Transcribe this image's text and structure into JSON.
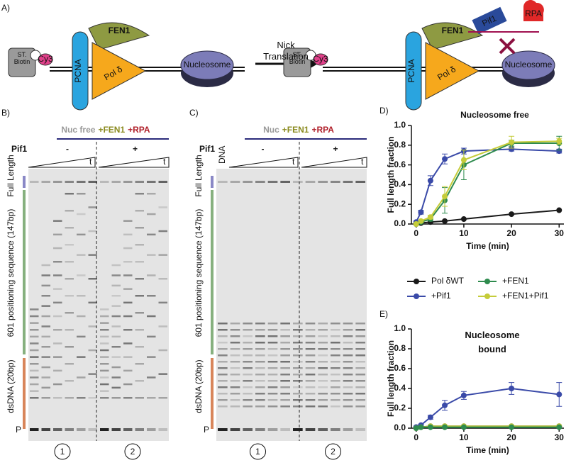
{
  "scheme": {
    "label": "A)",
    "left": {
      "biotin": "ST. Biotin",
      "cy3": "Cy3",
      "pcna": "PCNA",
      "fen1": "FEN1",
      "pol": "Pol δ",
      "nucleosome": "Nucleosome"
    },
    "arrow": "Nick Translation",
    "right": {
      "biotin": "ST. Biotin",
      "cy3": "Cy3",
      "pcna": "PCNA",
      "fen1": "FEN1",
      "pol": "Pol δ",
      "nucleosome": "Nucleosome",
      "pif1": "Pif1",
      "rpa": "RPA"
    }
  },
  "gels": [
    {
      "label": "B)",
      "title": [
        "Nuc free",
        "+FEN1",
        "+RPA"
      ],
      "pif1": "Pif1",
      "minus": "-",
      "plus": "+",
      "t": [
        "t",
        "t"
      ],
      "full_length": "Full Length",
      "region1": "601 positioning sequence (147bp)",
      "region2": "dsDNA (20bp)",
      "p": "P",
      "lanes": [
        "1",
        "2"
      ]
    },
    {
      "label": "C)",
      "title": [
        "Nuc",
        "+FEN1",
        "+RPA"
      ],
      "pif1": "Pif1",
      "dna": "DNA",
      "minus": "-",
      "plus": "+",
      "t": [
        "t",
        "t"
      ],
      "full_length": "Full Length",
      "region1": "601 positioning sequence (147bp)",
      "region2": "dsDNA (20bp)",
      "p": "P",
      "lanes": [
        "1",
        "2"
      ]
    }
  ],
  "chart_data": [
    {
      "type": "line",
      "panel": "D)",
      "title": "Nucleosome free",
      "x_label": "Time (min)",
      "y_label": "Full length fraction",
      "x": [
        0,
        1,
        3,
        6,
        10,
        20,
        30
      ],
      "xlim": [
        -1,
        31
      ],
      "xticks": [
        0,
        10,
        20,
        30
      ],
      "ylim": [
        0,
        1
      ],
      "yticks": [
        {
          "value": 0,
          "label": "0.0"
        },
        0.2,
        0.4,
        0.6,
        0.8,
        {
          "value": 1,
          "label": "1.0"
        }
      ],
      "series": [
        {
          "name": "Pol δWT",
          "color": "#1a1a1a",
          "values": [
            0,
            0.01,
            0.02,
            0.03,
            0.05,
            0.1,
            0.14
          ],
          "errors": [
            0,
            0,
            0,
            0,
            0,
            0,
            0
          ]
        },
        {
          "name": "+Pif1",
          "color": "#3a4aa8",
          "values": [
            0.02,
            0.12,
            0.44,
            0.66,
            0.74,
            0.76,
            0.74
          ],
          "errors": [
            0.01,
            0.02,
            0.05,
            0.05,
            0.03,
            0.02,
            0.02
          ]
        },
        {
          "name": "+FEN1",
          "color": "#2e8b4e",
          "values": [
            0,
            0.02,
            0.05,
            0.24,
            0.6,
            0.82,
            0.82
          ],
          "errors": [
            0,
            0.01,
            0.02,
            0.13,
            0.15,
            0.03,
            0.07
          ]
        },
        {
          "name": "+FEN1+Pif1",
          "color": "#c5cc3a",
          "values": [
            0,
            0.03,
            0.07,
            0.28,
            0.65,
            0.83,
            0.84
          ],
          "errors": [
            0,
            0.01,
            0.02,
            0.1,
            0.1,
            0.06,
            0.03
          ]
        }
      ]
    },
    {
      "type": "line",
      "panel": "E)",
      "title": "Nucleosome bound",
      "x_label": "Time (min)",
      "y_label": "Full length fraction",
      "x": [
        0,
        1,
        3,
        6,
        10,
        20,
        30
      ],
      "xlim": [
        -1,
        31
      ],
      "xticks": [
        0,
        10,
        20,
        30
      ],
      "ylim": [
        0,
        1
      ],
      "yticks": [
        {
          "value": 0,
          "label": "0.0"
        },
        0.2,
        0.4,
        0.6,
        0.8,
        {
          "value": 1,
          "label": "1.0"
        }
      ],
      "series": [
        {
          "color": "#1a1a1a",
          "values": [
            0.01,
            0.01,
            0.02,
            0.02,
            0.02,
            0.02,
            0.02
          ],
          "errors": [
            0,
            0,
            0,
            0,
            0,
            0,
            0
          ]
        },
        {
          "color": "#3a4aa8",
          "values": [
            0.01,
            0.03,
            0.11,
            0.23,
            0.33,
            0.4,
            0.34
          ],
          "errors": [
            0.01,
            0.01,
            0.02,
            0.05,
            0.04,
            0.06,
            0.12
          ]
        },
        {
          "color": "#c5cc3a",
          "values": [
            0,
            0.01,
            0.02,
            0.02,
            0.02,
            0.02,
            0.02
          ],
          "errors": [
            0,
            0,
            0,
            0,
            0,
            0,
            0
          ]
        },
        {
          "color": "#2e8b4e",
          "values": [
            0,
            0.01,
            0.01,
            0.01,
            0.01,
            0.01,
            0.01
          ],
          "errors": [
            0,
            0,
            0,
            0,
            0,
            0,
            0
          ]
        }
      ]
    }
  ]
}
